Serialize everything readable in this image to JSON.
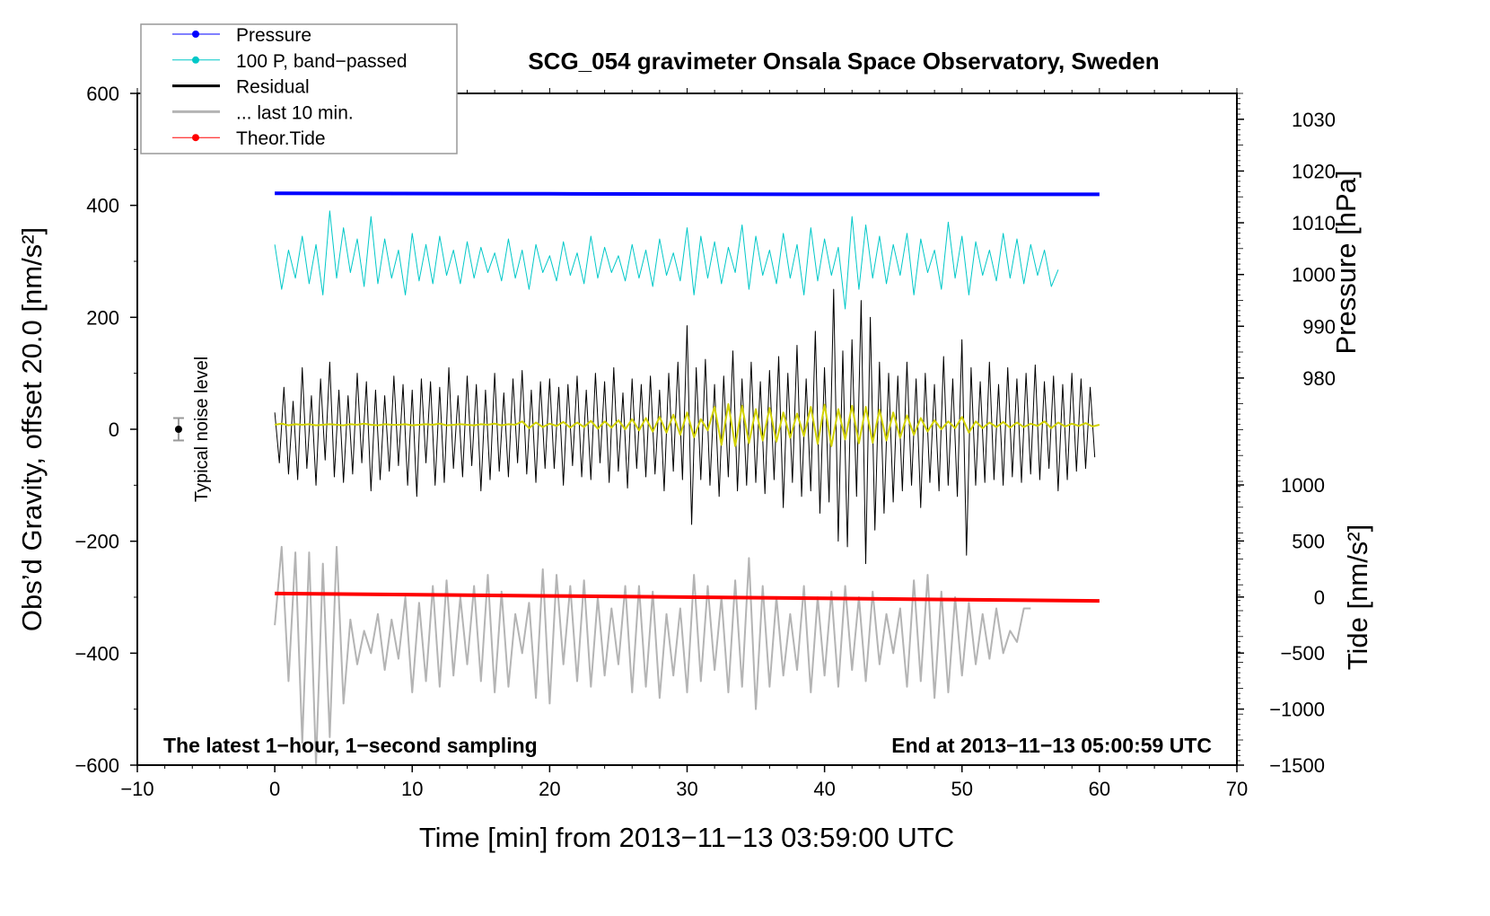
{
  "chart_data": {
    "type": "line",
    "title": "SCG_054 gravimeter Onsala Space Observatory, Sweden",
    "xlabel": "Time [min] from 2013−11−13 03:59:00 UTC",
    "ylabel": "Obs’d Gravity, offset 20.0 [nm/s²]",
    "ylabel_right_top": "Pressure [hPa]",
    "ylabel_right_bottom": "Tide [nm/s²]",
    "xlim": [
      -10,
      70
    ],
    "ylim": [
      -600,
      600
    ],
    "pressure_ylim": [
      905.2,
      1035
    ],
    "tide_ylim": [
      -1500,
      4494
    ],
    "x_ticks": [
      "−10",
      "0",
      "10",
      "20",
      "30",
      "40",
      "50",
      "60",
      "70"
    ],
    "x_tick_values": [
      -10,
      0,
      10,
      20,
      30,
      40,
      50,
      60,
      70
    ],
    "y_ticks": [
      "−600",
      "−400",
      "−200",
      "0",
      "200",
      "400",
      "600"
    ],
    "y_tick_values": [
      -600,
      -400,
      -200,
      0,
      200,
      400,
      600
    ],
    "pressure_ticks": [
      "980",
      "990",
      "1000",
      "1010",
      "1020",
      "1030"
    ],
    "pressure_tick_values": [
      980,
      990,
      1000,
      1010,
      1020,
      1030
    ],
    "tide_ticks": [
      "−1500",
      "−1000",
      "−500",
      "0",
      "500",
      "1000"
    ],
    "tide_tick_values": [
      -1500,
      -1000,
      -500,
      0,
      500,
      1000
    ],
    "annotations": {
      "bottom_left": "The latest 1−hour, 1−second sampling",
      "bottom_right": "End at 2013−11−13 05:00:59 UTC",
      "noise_label": "Typical noise level"
    },
    "noise_level": {
      "x": -7,
      "y": 0,
      "error": 20
    },
    "legend": {
      "position": "top-left",
      "entries": [
        {
          "label": "Pressure",
          "color": "#0000ff",
          "marker": true
        },
        {
          "label": "100 P, band−passed",
          "color": "#00c8c8",
          "marker": true
        },
        {
          "label": "Residual",
          "color": "#000000",
          "marker": false
        },
        {
          "label": "... last 10 min.",
          "color": "#b4b4b4",
          "marker": false
        },
        {
          "label": "Theor.Tide",
          "color": "#ff0000",
          "marker": true
        }
      ]
    },
    "series": [
      {
        "name": "Pressure",
        "axis": "pressure",
        "color": "#0000ff",
        "x": [
          0,
          20,
          40,
          60
        ],
        "values": [
          1015.7,
          1015.6,
          1015.5,
          1015.5
        ]
      },
      {
        "name": "100 P, band-passed",
        "axis": "left",
        "color": "#00c8c8",
        "x_start": 0,
        "x_step": 0.5,
        "values": [
          330,
          250,
          320,
          270,
          345,
          260,
          330,
          240,
          390,
          270,
          360,
          280,
          340,
          255,
          380,
          260,
          340,
          270,
          320,
          240,
          350,
          265,
          330,
          260,
          345,
          275,
          320,
          260,
          335,
          270,
          325,
          280,
          315,
          265,
          340,
          270,
          320,
          250,
          330,
          280,
          310,
          265,
          335,
          275,
          315,
          260,
          345,
          270,
          325,
          280,
          310,
          265,
          330,
          270,
          320,
          255,
          340,
          275,
          315,
          265,
          360,
          240,
          345,
          270,
          335,
          260,
          325,
          280,
          365,
          250,
          345,
          275,
          320,
          260,
          350,
          270,
          330,
          240,
          360,
          265,
          340,
          275,
          325,
          215,
          380,
          250,
          365,
          270,
          345,
          260,
          330,
          275,
          350,
          240,
          340,
          280,
          320,
          250,
          370,
          270,
          345,
          240,
          335,
          275,
          320,
          265,
          350,
          270,
          340,
          260,
          330,
          275,
          320,
          255,
          285
        ]
      },
      {
        "name": "Residual",
        "axis": "left",
        "color": "#000000",
        "x_start": 0,
        "x_step": 0.3333,
        "values": [
          30,
          -60,
          75,
          -80,
          50,
          -90,
          110,
          -70,
          60,
          -100,
          90,
          -55,
          120,
          -85,
          70,
          -95,
          60,
          -80,
          100,
          -60,
          85,
          -110,
          70,
          -90,
          60,
          -75,
          95,
          -65,
          80,
          -100,
          70,
          -120,
          90,
          -60,
          85,
          -100,
          75,
          -95,
          110,
          -70,
          60,
          -85,
          95,
          -65,
          80,
          -110,
          70,
          -90,
          100,
          -75,
          65,
          -85,
          90,
          -60,
          105,
          -80,
          70,
          -95,
          85,
          -70,
          90,
          -70,
          75,
          -100,
          80,
          -65,
          95,
          -85,
          70,
          -90,
          100,
          -60,
          85,
          -95,
          110,
          -75,
          65,
          -105,
          90,
          -70,
          80,
          -85,
          95,
          -80,
          70,
          -110,
          100,
          -75,
          120,
          -90,
          185,
          -170,
          110,
          -90,
          125,
          -100,
          80,
          -120,
          95,
          -85,
          140,
          -110,
          90,
          -100,
          120,
          -95,
          85,
          -115,
          105,
          -90,
          130,
          -140,
          100,
          -95,
          150,
          -120,
          90,
          -110,
          175,
          -150,
          110,
          -130,
          250,
          -200,
          140,
          -210,
          160,
          -120,
          230,
          -240,
          200,
          -180,
          120,
          -150,
          100,
          -130,
          95,
          -110,
          120,
          -100,
          90,
          -140,
          100,
          -95,
          80,
          -110,
          130,
          -100,
          90,
          -120,
          160,
          -225,
          110,
          -100,
          85,
          -95,
          120,
          -90,
          80,
          -100,
          110,
          -85,
          90,
          -95,
          100,
          -80,
          115,
          -90,
          85,
          -70,
          95,
          -110,
          80,
          -90,
          100,
          -75,
          90,
          -70,
          75,
          -50
        ]
      },
      {
        "name": "Residual smoothed",
        "axis": "left",
        "color": "#d2d200",
        "x_start": 0,
        "x_step": 0.5,
        "values": [
          8,
          10,
          7,
          9,
          8,
          9,
          7,
          8,
          9,
          8,
          7,
          9,
          8,
          10,
          8,
          7,
          9,
          8,
          8,
          9,
          7,
          8,
          9,
          8,
          10,
          7,
          8,
          9,
          8,
          7,
          9,
          8,
          10,
          7,
          9,
          8,
          14,
          2,
          12,
          4,
          10,
          6,
          13,
          3,
          12,
          4,
          15,
          1,
          14,
          3,
          16,
          0,
          18,
          -2,
          20,
          -4,
          22,
          -6,
          26,
          -10,
          30,
          -14,
          18,
          -2,
          40,
          -28,
          45,
          -30,
          42,
          -25,
          36,
          -20,
          38,
          -22,
          30,
          -15,
          28,
          -12,
          40,
          -26,
          44,
          -30,
          36,
          -18,
          42,
          -25,
          40,
          -24,
          35,
          -20,
          30,
          -15,
          25,
          -10,
          20,
          -4,
          16,
          0,
          14,
          2,
          22,
          -6,
          14,
          2,
          12,
          4,
          13,
          3,
          12,
          4,
          10,
          6,
          14,
          2,
          12,
          5,
          10,
          6,
          11,
          5,
          8
        ]
      },
      {
        "name": "... last 10 min.",
        "axis": "left",
        "color": "#b4b4b4",
        "x_start": 0,
        "x_step": 0.5,
        "values": [
          -350,
          -210,
          -450,
          -220,
          -560,
          -220,
          -600,
          -240,
          -550,
          -210,
          -490,
          -340,
          -420,
          -360,
          -400,
          -330,
          -430,
          -340,
          -410,
          -300,
          -470,
          -310,
          -450,
          -280,
          -460,
          -270,
          -440,
          -300,
          -420,
          -280,
          -450,
          -260,
          -470,
          -290,
          -460,
          -330,
          -400,
          -310,
          -480,
          -250,
          -490,
          -260,
          -420,
          -280,
          -450,
          -270,
          -460,
          -300,
          -440,
          -320,
          -420,
          -280,
          -470,
          -280,
          -460,
          -290,
          -480,
          -330,
          -440,
          -320,
          -470,
          -260,
          -450,
          -280,
          -430,
          -300,
          -470,
          -270,
          -460,
          -230,
          -500,
          -280,
          -460,
          -300,
          -440,
          -330,
          -430,
          -280,
          -470,
          -300,
          -440,
          -290,
          -460,
          -280,
          -430,
          -300,
          -450,
          -290,
          -420,
          -330,
          -400,
          -320,
          -460,
          -270,
          -450,
          -260,
          -480,
          -290,
          -470,
          -300,
          -440,
          -310,
          -420,
          -330,
          -410,
          -320,
          -400,
          -360,
          -380,
          -320,
          -320
        ]
      },
      {
        "name": "Theor.Tide",
        "axis": "tide",
        "color": "#ff0000",
        "x": [
          0,
          20,
          40,
          60.5
        ],
        "values": [
          32,
          10,
          -12,
          -35
        ]
      }
    ]
  }
}
